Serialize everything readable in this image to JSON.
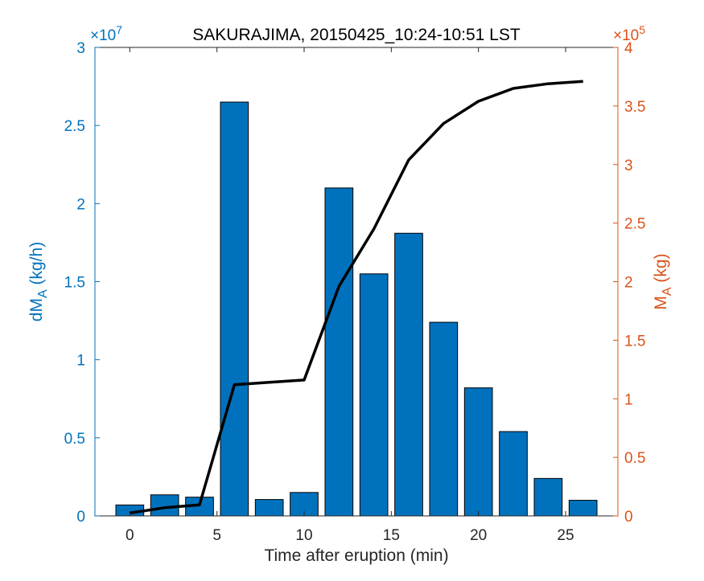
{
  "chart_data": {
    "type": "bar+line",
    "title": "SAKURAJIMA, 20150425_10:24-10:51 LST",
    "xlabel": "Time after eruption (min)",
    "ylabel_left": {
      "main": "dM",
      "sub": "A",
      "unit": " (kg/h)"
    },
    "ylabel_right": {
      "main": "M",
      "sub": "A",
      "unit": " (kg)"
    },
    "xlim": [
      -2,
      28
    ],
    "x_ticks": [
      0,
      5,
      10,
      15,
      20,
      25
    ],
    "y_left": {
      "lim": [
        0,
        3
      ],
      "ticks": [
        0,
        0.5,
        1,
        1.5,
        2,
        2.5,
        3
      ],
      "tick_labels": [
        "0",
        "0.5",
        "1",
        "1.5",
        "2",
        "2.5",
        "3"
      ],
      "exponent_label": {
        "base": "×10",
        "power": "7"
      },
      "color": "#0072BD"
    },
    "y_right": {
      "lim": [
        0,
        4
      ],
      "ticks": [
        0,
        0.5,
        1,
        1.5,
        2,
        2.5,
        3,
        3.5,
        4
      ],
      "tick_labels": [
        "0",
        "0.5",
        "1",
        "1.5",
        "2",
        "2.5",
        "3",
        "3.5",
        "4"
      ],
      "exponent_label": {
        "base": "×10",
        "power": "5"
      },
      "color": "#D95319"
    },
    "bars": {
      "axis": "left",
      "x": [
        0,
        2,
        4,
        6,
        8,
        10,
        12,
        14,
        16,
        18,
        20,
        22,
        24,
        26
      ],
      "values": [
        0.07,
        0.135,
        0.12,
        2.65,
        0.105,
        0.15,
        2.1,
        1.55,
        1.81,
        1.24,
        0.82,
        0.54,
        0.24,
        0.1
      ],
      "color": "#0072BD"
    },
    "line": {
      "axis": "right",
      "x": [
        0,
        2,
        4,
        6,
        8,
        10,
        12,
        14,
        16,
        18,
        20,
        22,
        24,
        26
      ],
      "values": [
        0.025,
        0.07,
        0.095,
        1.12,
        1.14,
        1.16,
        1.96,
        2.45,
        3.04,
        3.35,
        3.54,
        3.65,
        3.69,
        3.71
      ],
      "color": "#000000"
    },
    "grid": false,
    "legend": "none"
  }
}
